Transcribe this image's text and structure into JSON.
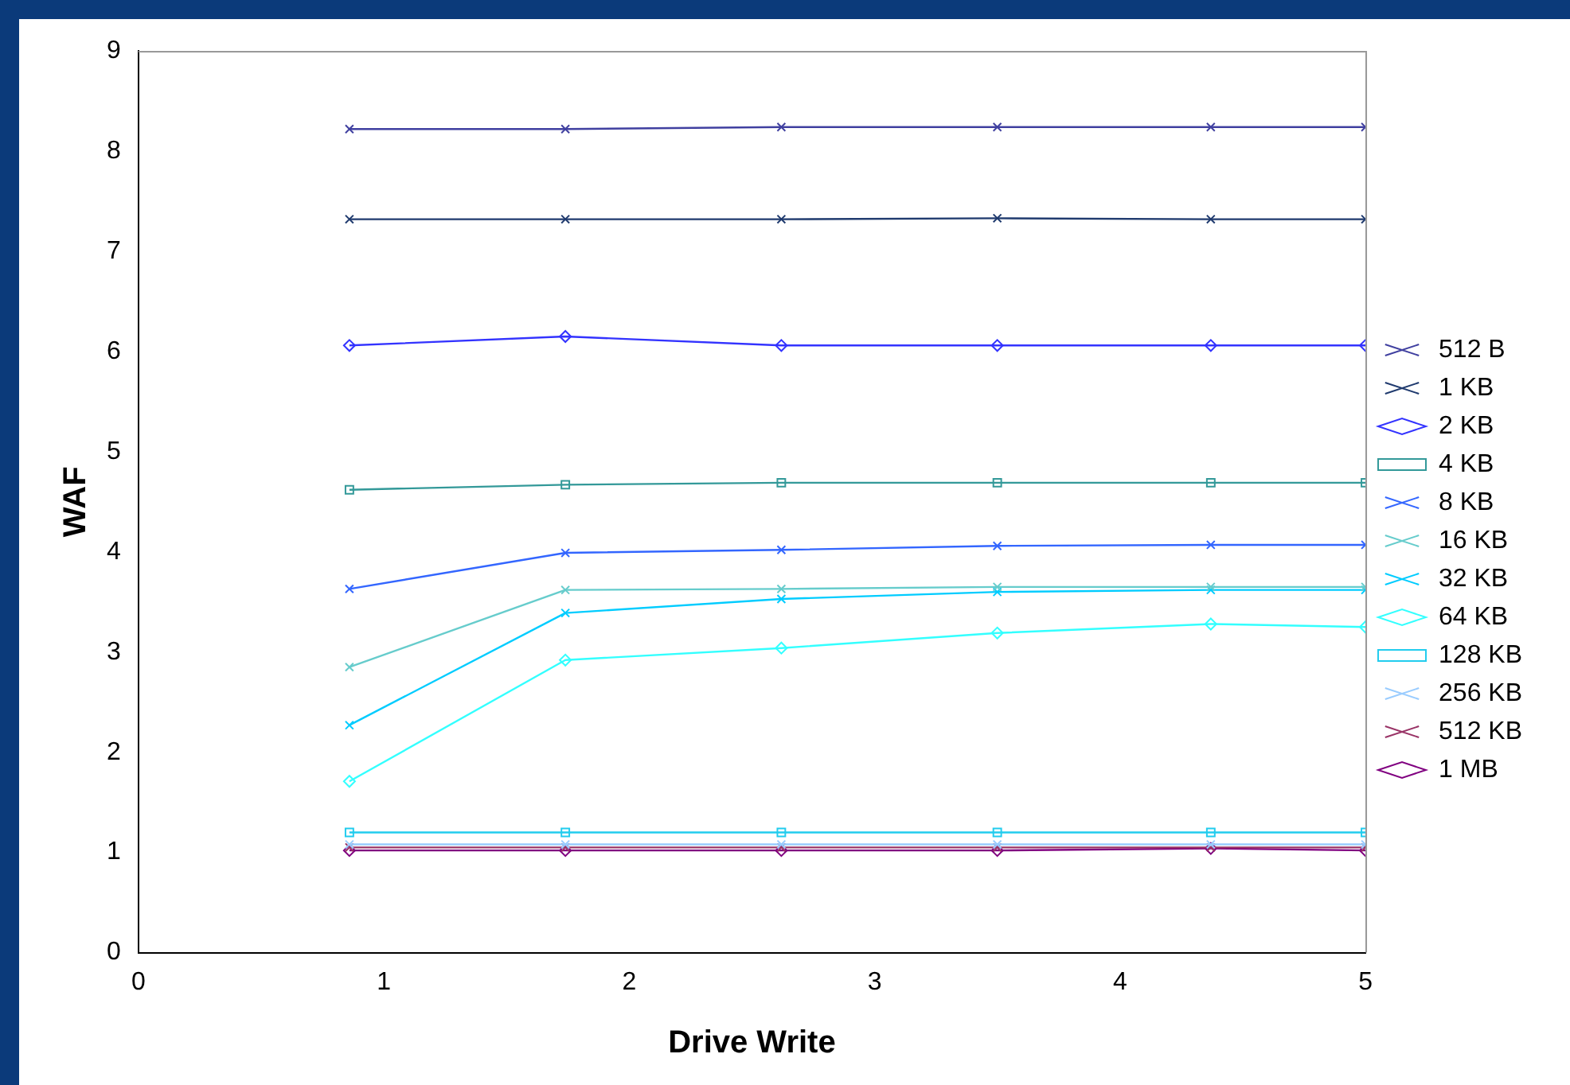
{
  "chart_data": {
    "type": "line",
    "xlabel": "Drive Write",
    "ylabel": "WAF",
    "x": [
      0.86,
      1.74,
      2.62,
      3.5,
      4.37,
      5
    ],
    "xlim": [
      0,
      5
    ],
    "xticks": [
      0,
      1,
      2,
      3,
      4,
      5
    ],
    "ylim": [
      0,
      9
    ],
    "yticks": [
      0,
      1,
      2,
      3,
      4,
      5,
      6,
      7,
      8,
      9
    ],
    "grid": false,
    "legend": "right",
    "line_style": "solid",
    "series": [
      {
        "name": "512 B",
        "color": "#4040a0",
        "marker": "cross",
        "values": [
          8.22,
          8.22,
          8.24,
          8.24,
          8.24,
          8.24
        ]
      },
      {
        "name": "1 KB",
        "color": "#1f3a6e",
        "marker": "cross",
        "values": [
          7.32,
          7.32,
          7.32,
          7.33,
          7.32,
          7.32
        ]
      },
      {
        "name": "2 KB",
        "color": "#3333ff",
        "marker": "diamond",
        "values": [
          6.06,
          6.15,
          6.06,
          6.06,
          6.06,
          6.06
        ]
      },
      {
        "name": "4 KB",
        "color": "#339999",
        "marker": "square",
        "values": [
          4.62,
          4.67,
          4.69,
          4.69,
          4.69,
          4.69
        ]
      },
      {
        "name": "8 KB",
        "color": "#3366ff",
        "marker": "cross",
        "values": [
          3.63,
          3.99,
          4.02,
          4.06,
          4.07,
          4.07
        ]
      },
      {
        "name": "16 KB",
        "color": "#66cccc",
        "marker": "cross",
        "values": [
          2.85,
          3.62,
          3.63,
          3.65,
          3.65,
          3.65
        ]
      },
      {
        "name": "32 KB",
        "color": "#00ccff",
        "marker": "cross",
        "values": [
          2.27,
          3.39,
          3.53,
          3.6,
          3.62,
          3.62
        ]
      },
      {
        "name": "64 KB",
        "color": "#33ffff",
        "marker": "diamond",
        "values": [
          1.71,
          2.92,
          3.04,
          3.19,
          3.28,
          3.25
        ]
      },
      {
        "name": "128 KB",
        "color": "#22ccee",
        "marker": "square",
        "values": [
          1.2,
          1.2,
          1.2,
          1.2,
          1.2,
          1.2
        ]
      },
      {
        "name": "256 KB",
        "color": "#99ccff",
        "marker": "cross",
        "values": [
          1.08,
          1.08,
          1.08,
          1.08,
          1.08,
          1.08
        ]
      },
      {
        "name": "512 KB",
        "color": "#993366",
        "marker": "cross",
        "values": [
          1.05,
          1.05,
          1.05,
          1.05,
          1.05,
          1.05
        ]
      },
      {
        "name": "1 MB",
        "color": "#800080",
        "marker": "diamond",
        "values": [
          1.02,
          1.02,
          1.02,
          1.02,
          1.04,
          1.02
        ]
      }
    ]
  }
}
